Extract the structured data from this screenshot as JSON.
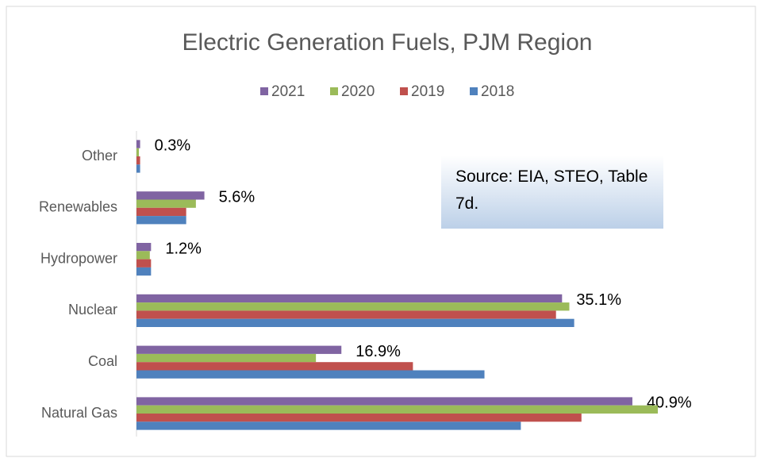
{
  "chart_data": {
    "type": "bar",
    "orientation": "horizontal",
    "title": "Electric Generation Fuels, PJM Region",
    "annotation": "Source: EIA, STEO, Table 7d.",
    "categories": [
      "Natural Gas",
      "Coal",
      "Nuclear",
      "Hydropower",
      "Renewables",
      "Other"
    ],
    "series": [
      {
        "name": "2021",
        "color": "#8064a2",
        "values": [
          40.9,
          16.9,
          35.1,
          1.2,
          5.6,
          0.3
        ],
        "value_labels": [
          "40.9%",
          "16.9%",
          "35.1%",
          "1.2%",
          "5.6%",
          "0.3%"
        ]
      },
      {
        "name": "2020",
        "color": "#9bbb59",
        "values": [
          43.0,
          14.8,
          35.7,
          1.1,
          4.9,
          0.2
        ]
      },
      {
        "name": "2019",
        "color": "#c0504d",
        "values": [
          36.7,
          22.8,
          34.6,
          1.2,
          4.1,
          0.3
        ]
      },
      {
        "name": "2018",
        "color": "#4f81bd",
        "values": [
          31.7,
          28.7,
          36.1,
          1.2,
          4.1,
          0.3
        ]
      }
    ]
  }
}
